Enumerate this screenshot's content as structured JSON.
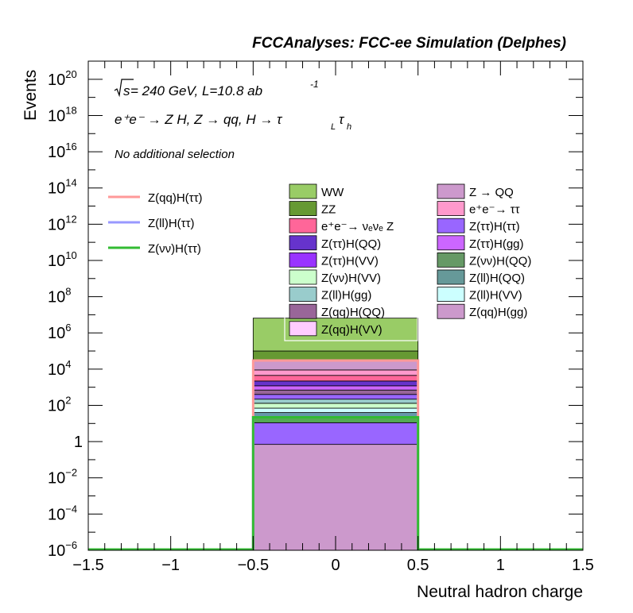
{
  "header": {
    "title": "FCCAnalyses: FCC-ee Simulation (Delphes)"
  },
  "annotations": {
    "energy_sqrt": "s",
    "energy_rest": " = 240 GeV, L=10.8 ab",
    "energy_exp": "-1",
    "process": "e⁺e⁻ → Z H, Z → qq, H → τ",
    "process_sub1": "L",
    "process_tau": "τ",
    "process_sub2": "h",
    "selection": "No additional selection"
  },
  "chart_data": {
    "type": "bar",
    "stacked": true,
    "log_y": true,
    "title": "FCCAnalyses: FCC-ee Simulation (Delphes)",
    "xlabel": "Neutral hadron charge",
    "ylabel": "Events",
    "xlim": [
      -1.5,
      1.5
    ],
    "ylim": [
      1e-06,
      1e+21
    ],
    "bin": [
      -0.5,
      0.5
    ],
    "x_ticks": [
      "−1.5",
      "−1",
      "−0.5",
      "0",
      "0.5",
      "1",
      "1.5"
    ],
    "x_tick_values": [
      -1.5,
      -1,
      -0.5,
      0,
      0.5,
      1,
      1.5
    ],
    "y_tick_exponents": [
      -6,
      -4,
      -2,
      0,
      2,
      4,
      6,
      8,
      10,
      12,
      14,
      16,
      18,
      20
    ],
    "y_tick_labels": [
      {
        "base": "10",
        "exp": "−6"
      },
      {
        "base": "10",
        "exp": "−4"
      },
      {
        "base": "10",
        "exp": "−2"
      },
      {
        "base": "1",
        "exp": ""
      },
      {
        "base": "10",
        "exp": "2"
      },
      {
        "base": "10",
        "exp": "4"
      },
      {
        "base": "10",
        "exp": "6"
      },
      {
        "base": "10",
        "exp": "8"
      },
      {
        "base": "10",
        "exp": "10"
      },
      {
        "base": "10",
        "exp": "12"
      },
      {
        "base": "10",
        "exp": "14"
      },
      {
        "base": "10",
        "exp": "16"
      },
      {
        "base": "10",
        "exp": "18"
      },
      {
        "base": "10",
        "exp": "20"
      }
    ],
    "stack_boundaries": [
      {
        "value": 0.7,
        "color": "#cc99cc"
      },
      {
        "value": 11,
        "color": "#9966ff"
      },
      {
        "value": 22,
        "color": "#55aa55"
      },
      {
        "value": 40,
        "color": "#6699aa"
      },
      {
        "value": 70,
        "color": "#ccffff"
      },
      {
        "value": 130,
        "color": "#ccffcc"
      },
      {
        "value": 220,
        "color": "#99cccc"
      },
      {
        "value": 400,
        "color": "#9966ff"
      },
      {
        "value": 700,
        "color": "#996699"
      },
      {
        "value": 1200,
        "color": "#cc66ff"
      },
      {
        "value": 2200,
        "color": "#6633cc"
      },
      {
        "value": 4500,
        "color": "#ff6699"
      },
      {
        "value": 9000,
        "color": "#ff99cc"
      },
      {
        "value": 30000,
        "color": "#cc99cc"
      },
      {
        "value": 100000,
        "color": "#669933"
      },
      {
        "value": 6500000,
        "color": "#99cc66"
      }
    ],
    "signal_lines": [
      {
        "name": "Z(qq)H(ττ)",
        "value": 30000,
        "color": "#ff9999"
      },
      {
        "name": "Z(ll)H(ττ)",
        "value": 22,
        "color": "#9999ff"
      },
      {
        "name": "Z(νν)H(ττ)",
        "value": 22,
        "color": "#33bb33"
      }
    ],
    "legend_backgrounds_col1": [
      {
        "name": "WW",
        "color": "#99cc66"
      },
      {
        "name": "ZZ",
        "color": "#669933"
      },
      {
        "name": "e⁺e⁻→ νₑνₑ Z",
        "color": "#ff6699"
      },
      {
        "name": "Z(ττ)H(QQ)",
        "color": "#6633cc"
      },
      {
        "name": "Z(ττ)H(VV)",
        "color": "#9933ff"
      },
      {
        "name": "Z(νν)H(VV)",
        "color": "#ccffcc"
      },
      {
        "name": "Z(ll)H(gg)",
        "color": "#99cccc"
      },
      {
        "name": "Z(qq)H(QQ)",
        "color": "#996699"
      },
      {
        "name": "Z(qq)H(VV)",
        "color": "#ffccff"
      }
    ],
    "legend_backgrounds_col2": [
      {
        "name": "Z → QQ",
        "color": "#cc99cc"
      },
      {
        "name": "e⁺e⁻→ ττ",
        "color": "#ff99cc"
      },
      {
        "name": "Z(ττ)H(ττ)",
        "color": "#9966ff"
      },
      {
        "name": "Z(ττ)H(gg)",
        "color": "#cc66ff"
      },
      {
        "name": "Z(νν)H(QQ)",
        "color": "#669966"
      },
      {
        "name": "Z(ll)H(QQ)",
        "color": "#669999"
      },
      {
        "name": "Z(ll)H(VV)",
        "color": "#ccffff"
      },
      {
        "name": "Z(qq)H(gg)",
        "color": "#cc99cc"
      }
    ],
    "legend_placement": "top"
  }
}
